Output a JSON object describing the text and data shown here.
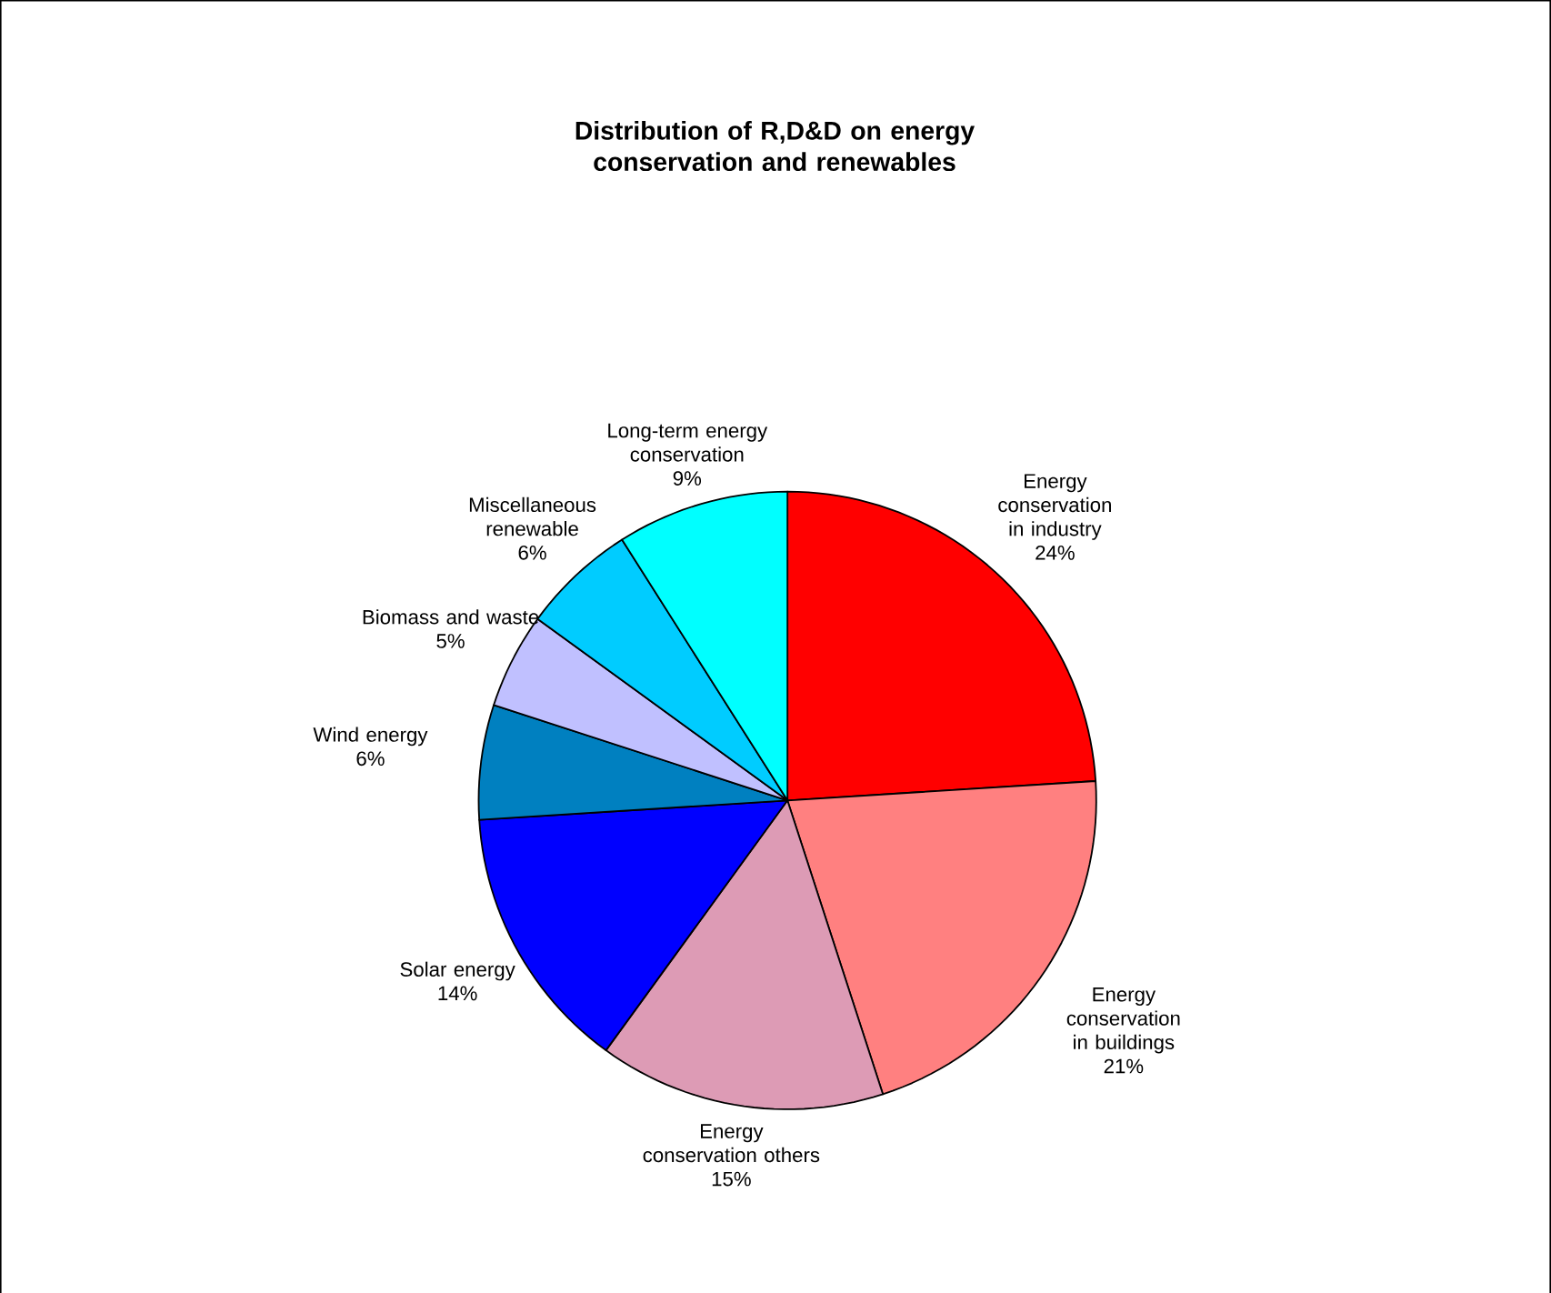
{
  "chart_data": {
    "type": "pie",
    "title": "Distribution of R,D&D on energy conservation and renewables",
    "categories": [
      "Energy conservation in industry",
      "Energy conservation in buildings",
      "Energy conservation others",
      "Solar energy",
      "Wind energy",
      "Biomass and waste",
      "Miscellaneous renewable",
      "Long-term energy conservation"
    ],
    "values": [
      24,
      21,
      15,
      14,
      6,
      5,
      6,
      9
    ],
    "value_labels": [
      "24%",
      "21%",
      "15%",
      "14%",
      "6%",
      "5%",
      "6%",
      "9%"
    ],
    "colors": [
      "#ff0000",
      "#ff8080",
      "#dd9bb5",
      "#0000ff",
      "#0080c0",
      "#c0c0ff",
      "#00ccff",
      "#00ffff"
    ]
  }
}
